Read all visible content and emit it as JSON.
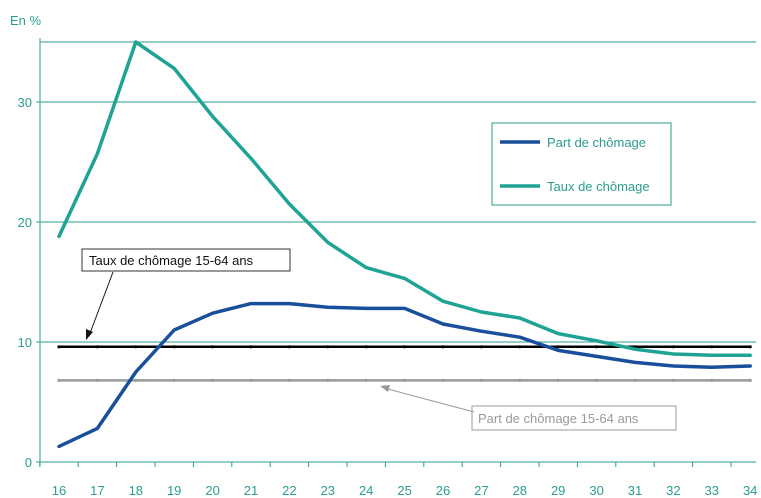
{
  "chart_data": {
    "type": "line",
    "ylabel": "En %",
    "x": [
      16,
      17,
      18,
      19,
      20,
      21,
      22,
      23,
      24,
      25,
      26,
      27,
      28,
      29,
      30,
      31,
      32,
      33,
      34
    ],
    "ylim": [
      0,
      35
    ],
    "yticks": [
      0,
      10,
      20,
      30
    ],
    "grid": true,
    "legend_position": "upper-right",
    "series": [
      {
        "name": "Part de chômage",
        "color": "#1a4f9c",
        "values": [
          1.3,
          2.8,
          7.5,
          11.0,
          12.4,
          13.2,
          13.2,
          12.9,
          12.8,
          12.8,
          11.5,
          10.9,
          10.4,
          9.3,
          8.8,
          8.3,
          8.0,
          7.9,
          8.0
        ]
      },
      {
        "name": "Taux de chômage",
        "color": "#1fa394",
        "values": [
          18.8,
          25.7,
          35.0,
          32.8,
          28.8,
          25.3,
          21.5,
          18.3,
          16.2,
          15.3,
          13.4,
          12.5,
          12.0,
          10.7,
          10.1,
          9.4,
          9.0,
          8.9,
          8.9
        ]
      }
    ],
    "reference_lines": [
      {
        "label": "Taux de chômage 15-64 ans",
        "value": 9.6,
        "color": "#000000"
      },
      {
        "label": "Part de chômage 15-64 ans",
        "value": 6.8,
        "color": "#9a9a9a"
      }
    ]
  },
  "colors": {
    "axis": "#2a9d8f",
    "grid": "#2a9d8f"
  }
}
